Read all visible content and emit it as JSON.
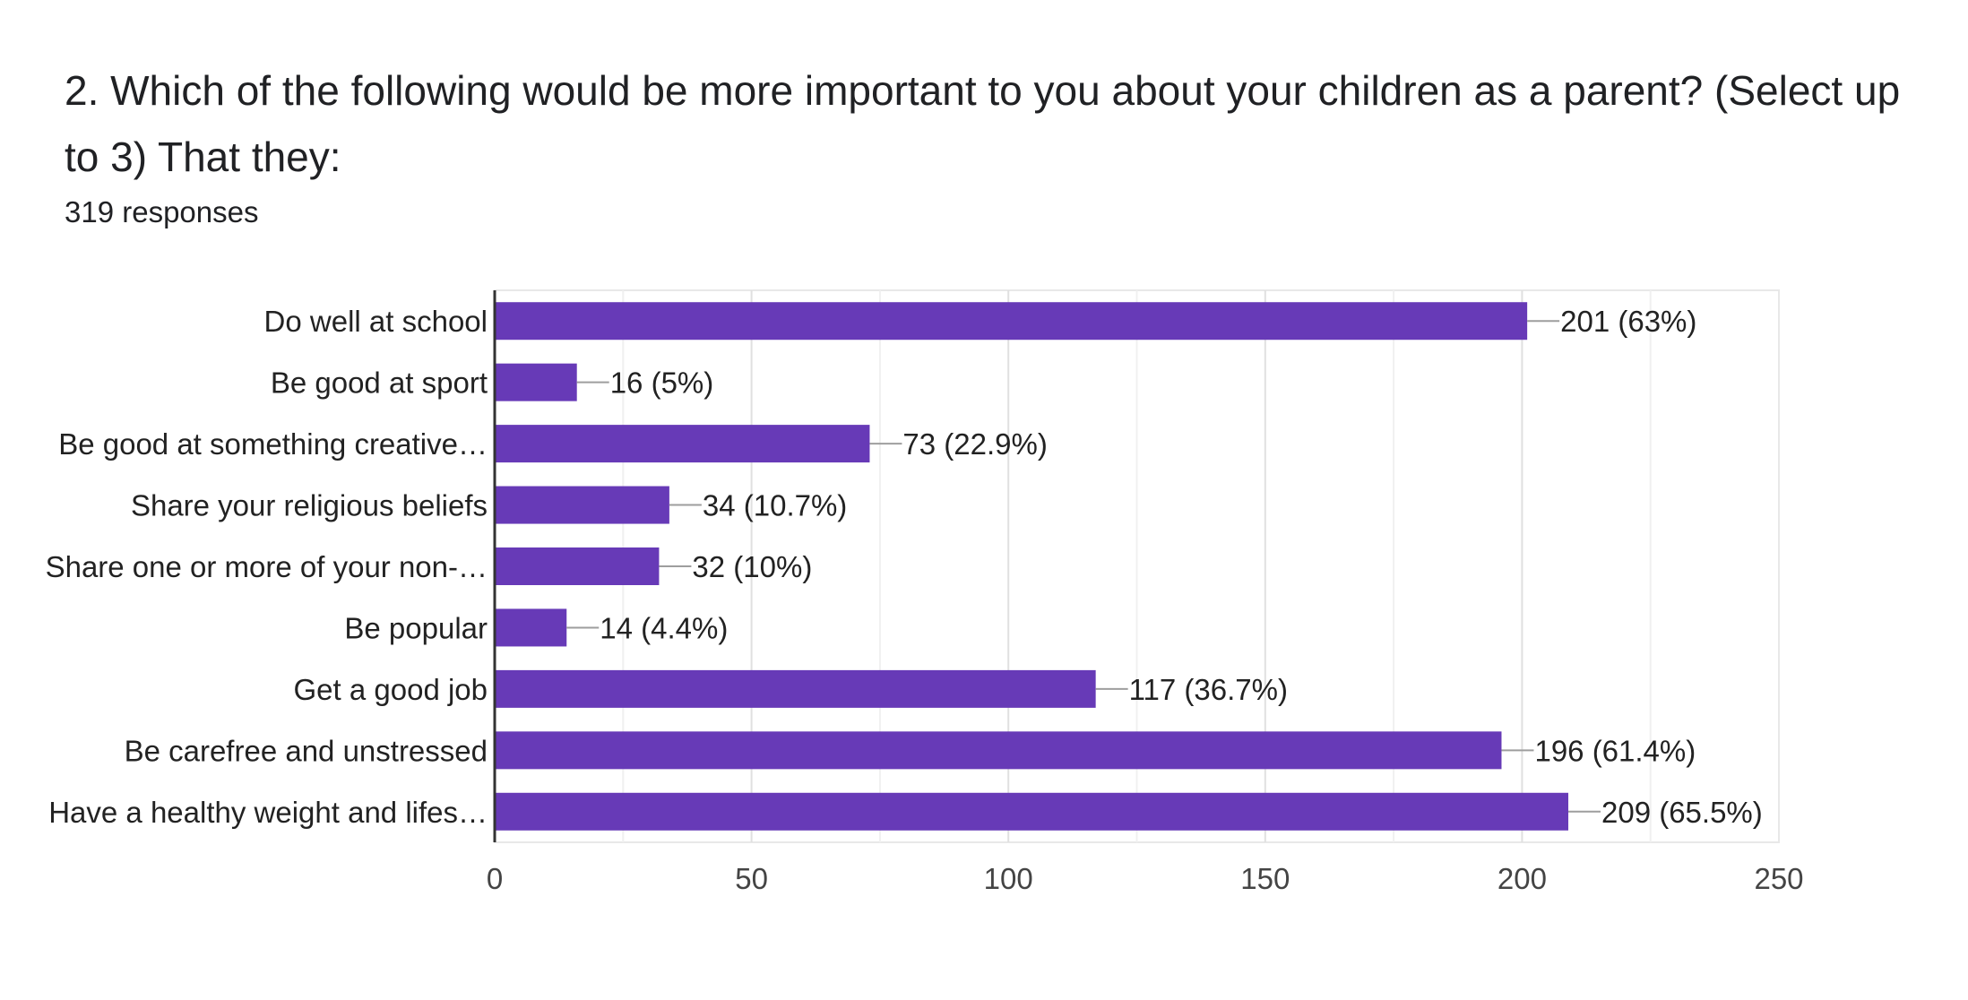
{
  "title": "2. Which of the following would be more important to you about your children as a parent? (Select up to 3)   That they:",
  "subtitle": "319 responses",
  "colors": {
    "bar": "#673ab7",
    "grid": "#e8e8e8",
    "axis": "#333333",
    "leader": "#9e9e9e"
  },
  "chart_data": {
    "type": "bar",
    "orientation": "horizontal",
    "categories": [
      "Do well at school",
      "Be good at sport",
      "Be good at something creative…",
      "Share your religious beliefs",
      "Share one or more of your non-…",
      "Be popular",
      "Get a good job",
      "Be carefree and unstressed",
      "Have a healthy weight and lifes…"
    ],
    "values": [
      201,
      16,
      73,
      34,
      32,
      14,
      117,
      196,
      209
    ],
    "data_labels": [
      "201 (63%)",
      "16 (5%)",
      "73 (22.9%)",
      "34 (10.7%)",
      "32 (10%)",
      "14 (4.4%)",
      "117 (36.7%)",
      "196 (61.4%)",
      "209 (65.5%)"
    ],
    "xlim": [
      0,
      250
    ],
    "xticks": [
      "0",
      "50",
      "100",
      "150",
      "200",
      "250"
    ],
    "xlabel": "",
    "ylabel": "",
    "grid": true,
    "legend": "none"
  }
}
